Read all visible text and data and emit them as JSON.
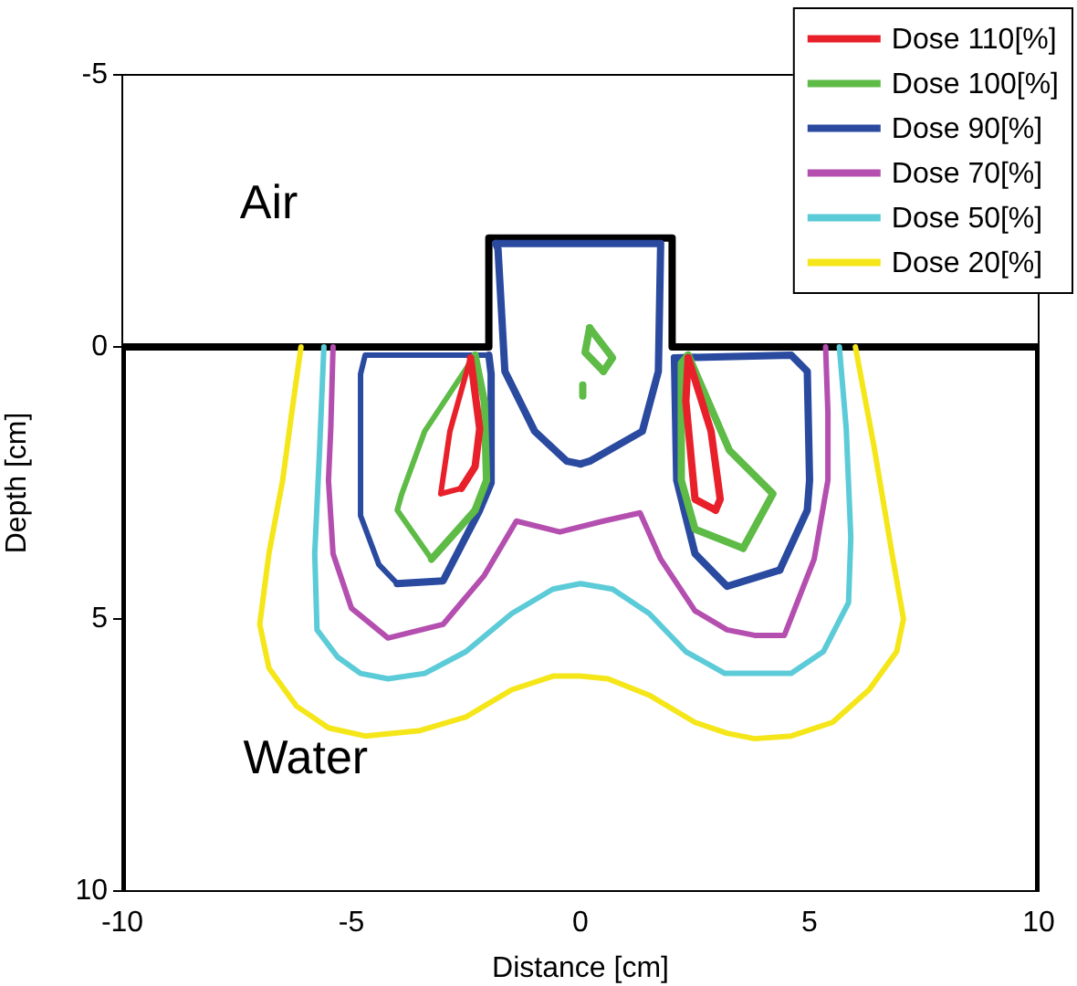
{
  "chart_data": {
    "type": "line",
    "xlabel": "Distance [cm]",
    "ylabel": "Depth [cm]",
    "xlim": [
      -10,
      10
    ],
    "xticks": [
      -10,
      -5,
      0,
      5,
      10
    ],
    "ylim": [
      10,
      -5
    ],
    "yticks": [
      -5,
      0,
      5,
      10
    ],
    "legend": "top right",
    "annotations": [
      "Air",
      "Water"
    ],
    "series": [
      {
        "name": "Dose 110[%]",
        "color": "#e8202a",
        "x": [
          -2.4,
          -2.85,
          -3.05,
          -2.6
        ],
        "values": [
          0.2,
          1.55,
          2.7,
          2.6
        ]
      },
      {
        "color": "#e8202a",
        "x": [
          -2.6,
          -2.3,
          -2.2,
          -2.4
        ],
        "values": [
          2.6,
          2.2,
          1.5,
          0.2
        ]
      },
      {
        "color": "#e8202a",
        "x": [
          2.35,
          2.85,
          3.05,
          2.95
        ],
        "values": [
          0.2,
          1.55,
          2.8,
          3.0
        ]
      },
      {
        "color": "#e8202a",
        "x": [
          2.95,
          2.5,
          2.3,
          2.35
        ],
        "values": [
          3.0,
          2.8,
          1.0,
          0.2
        ]
      },
      {
        "name": "Dose 100[%]",
        "color": "#5dbb46",
        "x": [
          -2.3,
          -3.4,
          -3.9,
          -4.0,
          -3.25
        ],
        "values": [
          0.15,
          1.55,
          2.7,
          3.0,
          3.9
        ]
      },
      {
        "color": "#5dbb46",
        "x": [
          -3.25,
          -2.3,
          -2.05,
          -2.1,
          -2.3
        ],
        "values": [
          3.9,
          3.0,
          2.45,
          1.0,
          0.15
        ]
      },
      {
        "color": "#5dbb46",
        "x": [
          0.2,
          0.7,
          0.5
        ],
        "values": [
          -0.35,
          0.2,
          0.45
        ]
      },
      {
        "color": "#5dbb46",
        "x": [
          0.5,
          0.1,
          0.2
        ],
        "values": [
          0.45,
          0.1,
          -0.35
        ]
      },
      {
        "color": "#5dbb46",
        "x": [
          0.05,
          0.05
        ],
        "values": [
          0.7,
          0.9
        ]
      },
      {
        "color": "#5dbb46",
        "x": [
          2.35,
          3.25,
          4.2,
          3.55
        ],
        "values": [
          0.15,
          1.9,
          2.7,
          3.7
        ]
      },
      {
        "color": "#5dbb46",
        "x": [
          3.55,
          2.5,
          2.2,
          2.2,
          2.35
        ],
        "values": [
          3.7,
          3.35,
          2.45,
          0.3,
          0.15
        ]
      },
      {
        "name": "Dose 90[%]",
        "color": "#2a4aa0",
        "x": [
          -2.0,
          -4.7,
          -4.8,
          -4.8,
          -4.4,
          -4.0
        ],
        "values": [
          0.15,
          0.15,
          0.5,
          3.1,
          4.0,
          4.35
        ]
      },
      {
        "color": "#2a4aa0",
        "x": [
          -4.0,
          -3.0,
          -2.2,
          -1.95,
          -1.95,
          -2.0
        ],
        "values": [
          4.35,
          4.3,
          3.0,
          2.5,
          0.5,
          0.15
        ]
      },
      {
        "color": "#2a4aa0",
        "x": [
          0,
          -0.3,
          -1.0,
          -1.65,
          -1.8,
          -1.85
        ],
        "values": [
          2.15,
          2.1,
          1.55,
          0.45,
          -1.8,
          -1.9
        ]
      },
      {
        "color": "#2a4aa0",
        "x": [
          -1.85,
          1.75,
          1.7,
          1.35,
          0.2,
          0
        ],
        "values": [
          -1.9,
          -1.9,
          0.45,
          1.55,
          2.1,
          2.15
        ]
      },
      {
        "color": "#2a4aa0",
        "x": [
          2.05,
          4.6,
          4.95,
          5.0,
          4.95,
          4.35
        ],
        "values": [
          0.2,
          0.15,
          0.45,
          2.45,
          3.0,
          4.1
        ]
      },
      {
        "color": "#2a4aa0",
        "x": [
          4.35,
          3.2,
          2.5,
          2.1,
          2.05
        ],
        "values": [
          4.1,
          4.4,
          3.8,
          2.45,
          0.2
        ]
      },
      {
        "name": "Dose 70[%]",
        "color": "#b44fb0",
        "x": [
          -5.4,
          -5.45,
          -5.5,
          -5.4,
          -5.0,
          -4.2,
          -3.0,
          -2.1,
          -1.4,
          -0.45,
          0.5,
          1.3,
          1.75,
          2.5,
          3.2,
          3.8,
          4.45,
          5.1,
          5.4,
          5.4,
          5.35
        ],
        "values": [
          0,
          1.5,
          2.45,
          3.8,
          4.8,
          5.35,
          5.1,
          4.2,
          3.2,
          3.4,
          3.2,
          3.05,
          3.9,
          4.85,
          5.2,
          5.3,
          5.3,
          3.9,
          2.45,
          1.2,
          0
        ]
      },
      {
        "name": "Dose 50[%]",
        "color": "#5ccbd8",
        "x": [
          -5.6,
          -5.7,
          -5.8,
          -5.75,
          -5.3,
          -4.8,
          -4.2,
          -3.4,
          -2.5,
          -1.5,
          -0.6,
          0,
          0.7,
          1.5,
          2.3,
          3.15,
          4.0,
          4.6,
          5.3,
          5.85,
          5.9,
          5.8,
          5.65
        ],
        "values": [
          0,
          2.0,
          3.8,
          5.2,
          5.7,
          6.0,
          6.1,
          6.0,
          5.6,
          4.9,
          4.45,
          4.35,
          4.45,
          4.9,
          5.6,
          6.0,
          6.0,
          6.0,
          5.6,
          4.7,
          3.5,
          1.5,
          0
        ]
      },
      {
        "name": "Dose 20[%]",
        "color": "#f5e61a",
        "x": [
          -6.1,
          -6.3,
          -6.5,
          -6.8,
          -7.0,
          -6.8,
          -6.2,
          -5.5,
          -4.7,
          -3.5,
          -2.5,
          -1.5,
          -0.6,
          0,
          0.6,
          1.5,
          2.5,
          3.2,
          3.8,
          4.6,
          5.5,
          6.3,
          6.9,
          7.05,
          6.8,
          6.4,
          6.0
        ],
        "values": [
          0,
          1.2,
          2.45,
          3.8,
          5.1,
          5.9,
          6.6,
          7.0,
          7.15,
          7.05,
          6.8,
          6.3,
          6.05,
          6.05,
          6.1,
          6.4,
          6.9,
          7.1,
          7.2,
          7.15,
          6.9,
          6.3,
          5.6,
          5.0,
          3.8,
          1.8,
          0
        ]
      },
      {
        "color": "#000000",
        "x": [
          -10,
          -10,
          -2,
          -2,
          2,
          2,
          10,
          10
        ],
        "values": [
          10,
          0,
          0,
          -2,
          -2,
          0,
          0,
          10
        ]
      }
    ]
  }
}
